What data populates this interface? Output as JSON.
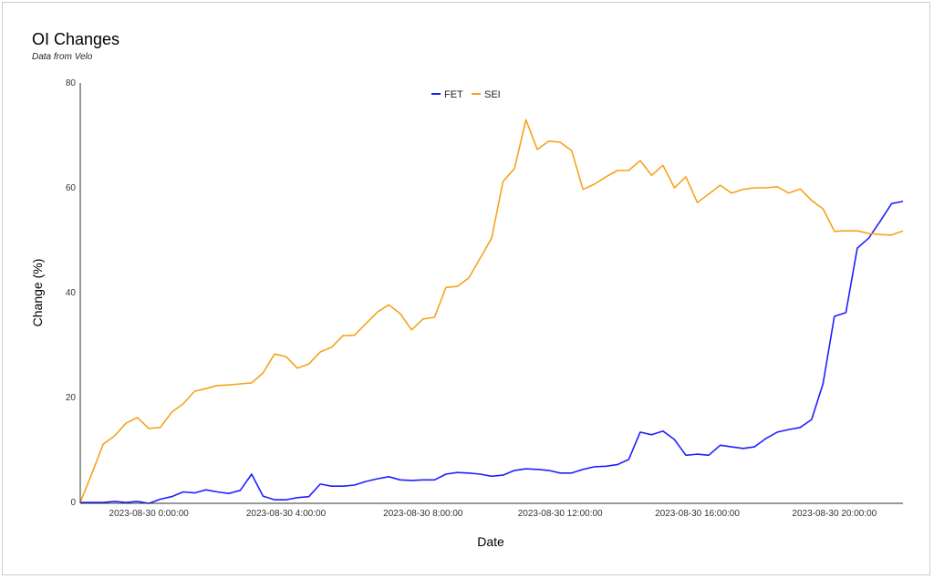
{
  "chart_data": {
    "type": "line",
    "title": "OI Changes",
    "subtitle": "Data from Velo",
    "xlabel": "Date",
    "ylabel": "Change (%)",
    "ylim": [
      0,
      80
    ],
    "yticks": [
      "0",
      "20",
      "40",
      "60",
      "80"
    ],
    "xticks": [
      "2023-08-30 0:00:00",
      "2023-08-30 4:00:00",
      "2023-08-30 8:00:00",
      "2023-08-30 12:00:00",
      "2023-08-30 16:00:00",
      "2023-08-30 20:00:00"
    ],
    "grid": false,
    "legend": "top-center",
    "x": [
      "2023-08-29 22:00",
      "2023-08-29 22:20",
      "2023-08-29 22:40",
      "2023-08-29 23:00",
      "2023-08-29 23:20",
      "2023-08-29 23:40",
      "2023-08-30 0:00",
      "2023-08-30 0:20",
      "2023-08-30 0:40",
      "2023-08-30 1:00",
      "2023-08-30 1:20",
      "2023-08-30 1:40",
      "2023-08-30 2:00",
      "2023-08-30 2:20",
      "2023-08-30 2:40",
      "2023-08-30 3:00",
      "2023-08-30 3:20",
      "2023-08-30 3:40",
      "2023-08-30 4:00",
      "2023-08-30 4:20",
      "2023-08-30 4:40",
      "2023-08-30 5:00",
      "2023-08-30 5:20",
      "2023-08-30 5:40",
      "2023-08-30 6:00",
      "2023-08-30 6:20",
      "2023-08-30 6:40",
      "2023-08-30 7:00",
      "2023-08-30 7:20",
      "2023-08-30 7:40",
      "2023-08-30 8:00",
      "2023-08-30 8:20",
      "2023-08-30 8:40",
      "2023-08-30 9:00",
      "2023-08-30 9:20",
      "2023-08-30 9:40",
      "2023-08-30 10:00",
      "2023-08-30 10:20",
      "2023-08-30 10:40",
      "2023-08-30 11:00",
      "2023-08-30 11:20",
      "2023-08-30 11:40",
      "2023-08-30 12:00",
      "2023-08-30 12:20",
      "2023-08-30 12:40",
      "2023-08-30 13:00",
      "2023-08-30 13:20",
      "2023-08-30 13:40",
      "2023-08-30 14:00",
      "2023-08-30 14:20",
      "2023-08-30 14:40",
      "2023-08-30 15:00",
      "2023-08-30 15:20",
      "2023-08-30 15:40",
      "2023-08-30 16:00",
      "2023-08-30 16:20",
      "2023-08-30 16:40",
      "2023-08-30 17:00",
      "2023-08-30 17:20",
      "2023-08-30 17:40",
      "2023-08-30 18:00",
      "2023-08-30 18:20",
      "2023-08-30 18:40",
      "2023-08-30 19:00",
      "2023-08-30 19:20",
      "2023-08-30 19:40",
      "2023-08-30 20:00",
      "2023-08-30 20:20",
      "2023-08-30 20:40",
      "2023-08-30 21:00",
      "2023-08-30 21:20",
      "2023-08-30 21:40",
      "2023-08-30 22:00"
    ],
    "series": [
      {
        "name": "FET",
        "color": "#1f1fff",
        "values": [
          0,
          0,
          0,
          0.2,
          0,
          0.2,
          -0.2,
          0.6,
          1.1,
          2,
          1.8,
          2.4,
          2,
          1.7,
          2.3,
          5.4,
          1.2,
          0.5,
          0.5,
          0.9,
          1.1,
          3.5,
          3.1,
          3.1,
          3.3,
          4,
          4.5,
          4.9,
          4.3,
          4.2,
          4.3,
          4.3,
          5.4,
          5.7,
          5.6,
          5.4,
          5,
          5.2,
          6.1,
          6.4,
          6.3,
          6.1,
          5.6,
          5.6,
          6.3,
          6.8,
          6.9,
          7.2,
          8.2,
          13.4,
          12.9,
          13.6,
          12,
          9,
          9.2,
          9,
          10.9,
          10.6,
          10.3,
          10.6,
          12.2,
          13.4,
          13.9,
          14.3,
          15.8,
          22.6,
          35.5,
          36.2,
          48.5,
          50.4,
          53.6,
          57,
          57.4
        ]
      },
      {
        "name": "SEI",
        "color": "#f7a21b",
        "values": [
          0,
          5.4,
          11.1,
          12.7,
          15.1,
          16.2,
          14.1,
          14.3,
          17.2,
          18.8,
          21.2,
          21.7,
          22.3,
          22.4,
          22.6,
          22.8,
          24.7,
          28.3,
          27.8,
          25.6,
          26.4,
          28.7,
          29.6,
          31.8,
          31.9,
          34.1,
          36.3,
          37.7,
          36,
          32.9,
          35,
          35.3,
          41,
          41.2,
          42.8,
          46.6,
          50.4,
          61.2,
          63.7,
          73,
          67.3,
          68.9,
          68.7,
          67.1,
          59.7,
          60.7,
          62.1,
          63.3,
          63.3,
          65.2,
          62.4,
          64.3,
          60,
          62.1,
          57.2,
          58.8,
          60.5,
          59,
          59.7,
          60,
          60,
          60.2,
          59,
          59.8,
          57.6,
          56,
          51.7,
          51.8,
          51.8,
          51.3,
          51.1,
          51,
          51.8
        ]
      }
    ]
  }
}
